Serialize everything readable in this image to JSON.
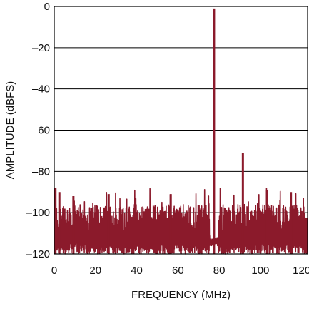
{
  "chart_data": {
    "type": "line",
    "title": "",
    "xlabel": "FREQUENCY (MHz)",
    "ylabel": "AMPLITUDE (dBFS)",
    "xlim": [
      0,
      122.88
    ],
    "ylim": [
      -120,
      0
    ],
    "x_ticks": [
      "0",
      "20",
      "40",
      "60",
      "80",
      "100",
      "120"
    ],
    "y_ticks": [
      "0",
      "–20",
      "–40",
      "–60",
      "–80",
      "–100",
      "–120"
    ],
    "grid": "horizontal",
    "colors": {
      "trace": "#8b1a2b",
      "grid": "#000000",
      "axis": "#000000"
    },
    "noise_floor": {
      "band_dbfs": [
        -120,
        -100
      ],
      "peak_dbfs": -88
    },
    "series": [
      {
        "peaks": [
          {
            "x": 77.5,
            "y": -1
          },
          {
            "x": 91.5,
            "y": -71
          },
          {
            "x": 0.6,
            "y": -88
          },
          {
            "x": 103.2,
            "y": -89
          },
          {
            "x": 114.8,
            "y": -90
          },
          {
            "x": 26.4,
            "y": -91
          },
          {
            "x": 56.5,
            "y": -91
          },
          {
            "x": 2.5,
            "y": -90
          },
          {
            "x": 9.3,
            "y": -92
          }
        ]
      }
    ]
  }
}
